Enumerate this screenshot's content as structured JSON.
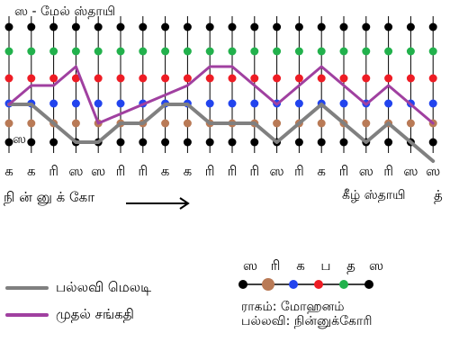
{
  "labels": {
    "upper_octave": "ஸ - மேல் ஸ்தாயி",
    "lower_sa": "ஸ",
    "lyrics": "நி ன் னு க்  கோ",
    "lower_octave": "கீழ் ஸ்தாயி",
    "last_syllable": "த்"
  },
  "note_row": [
    "க",
    "க",
    "ரி",
    "ஸ",
    "ஸ",
    "ரி",
    "ரி",
    "க",
    "க",
    "ரி",
    "ரி",
    "ரி",
    "ஸ",
    "ரி",
    "க",
    "ரி",
    "ஸ",
    "ரி",
    "ஸ",
    "ஸ"
  ],
  "legend": [
    {
      "label": "பல்லவி மெலடி",
      "color": "#808080"
    },
    {
      "label": "முதல் சங்கதி",
      "color": "#a040a0"
    }
  ],
  "scale_key": {
    "notes": [
      "ஸ",
      "ரி",
      "க",
      "ப",
      "த",
      "ஸ"
    ],
    "dot_colors": [
      "#000000",
      "#b97a56",
      "#2244ee",
      "#ee1c24",
      "#22b14c"
    ],
    "raga": "ராகம்: மோஹனம்",
    "pallavi": "பல்லவி: நின்னுக்கோரி"
  },
  "colors": {
    "dot_rows": [
      "#000000",
      "#22b14c",
      "#ee1c24",
      "#2244ee",
      "#b97a56",
      "#000000"
    ],
    "line_color": "#000000",
    "melody": "#808080",
    "sangathi": "#a040a0"
  },
  "melody_steps": [
    2,
    2,
    1,
    0,
    0,
    1,
    1,
    2,
    2,
    1,
    1,
    1,
    0,
    1,
    2,
    1,
    0,
    1,
    0,
    -1
  ],
  "sangathi_steps": [
    2,
    3,
    3,
    4,
    1,
    1.5,
    2,
    2.5,
    3,
    4,
    4,
    3,
    2,
    3,
    4,
    3,
    2,
    3,
    2,
    1
  ]
}
